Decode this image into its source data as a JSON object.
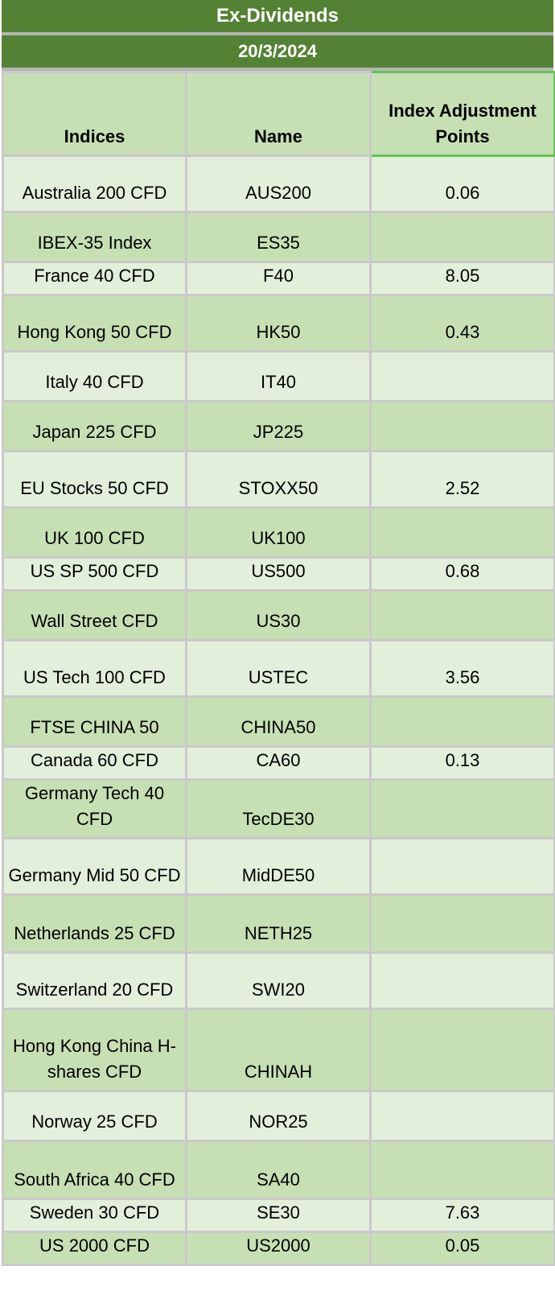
{
  "title": "Ex-Dividends",
  "date": "20/3/2024",
  "columns": [
    "Indices",
    "Name",
    "Index Adjustment Points"
  ],
  "rows": [
    {
      "index": "Australia 200 CFD",
      "name": "AUS200",
      "points": "0.06"
    },
    {
      "index": "IBEX-35 Index",
      "name": "ES35",
      "points": ""
    },
    {
      "index": "France 40 CFD",
      "name": "F40",
      "points": "8.05"
    },
    {
      "index": "Hong Kong 50 CFD",
      "name": "HK50",
      "points": "0.43"
    },
    {
      "index": "Italy 40 CFD",
      "name": "IT40",
      "points": ""
    },
    {
      "index": "Japan 225 CFD",
      "name": "JP225",
      "points": ""
    },
    {
      "index": "EU Stocks 50 CFD",
      "name": "STOXX50",
      "points": "2.52"
    },
    {
      "index": "UK 100 CFD",
      "name": "UK100",
      "points": ""
    },
    {
      "index": "US SP 500 CFD",
      "name": "US500",
      "points": "0.68"
    },
    {
      "index": "Wall Street CFD",
      "name": "US30",
      "points": ""
    },
    {
      "index": "US Tech 100 CFD",
      "name": "USTEC",
      "points": "3.56"
    },
    {
      "index": "FTSE CHINA 50",
      "name": "CHINA50",
      "points": ""
    },
    {
      "index": "Canada 60 CFD",
      "name": "CA60",
      "points": "0.13"
    },
    {
      "index": "Germany Tech 40 CFD",
      "name": "TecDE30",
      "points": ""
    },
    {
      "index": "Germany Mid 50 CFD",
      "name": "MidDE50",
      "points": ""
    },
    {
      "index": "Netherlands 25 CFD",
      "name": "NETH25",
      "points": ""
    },
    {
      "index": "Switzerland 20 CFD",
      "name": "SWI20",
      "points": ""
    },
    {
      "index": "Hong Kong China H-shares CFD",
      "name": "CHINAH",
      "points": ""
    },
    {
      "index": "Norway 25 CFD",
      "name": "NOR25",
      "points": ""
    },
    {
      "index": "South Africa 40 CFD",
      "name": "SA40",
      "points": ""
    },
    {
      "index": "Sweden 30 CFD",
      "name": "SE30",
      "points": "7.63"
    },
    {
      "index": "US 2000 CFD",
      "name": "US2000",
      "points": "0.05"
    }
  ]
}
